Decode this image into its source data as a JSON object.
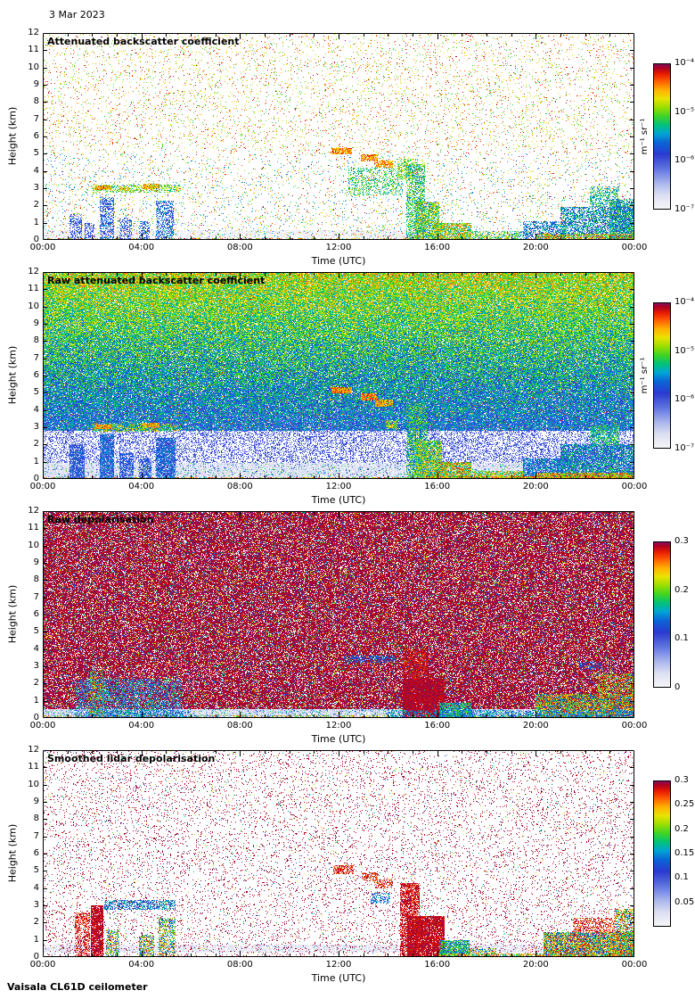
{
  "figure": {
    "date_label": "3 Mar 2023",
    "footer_label": "Vaisala CL61D ceilometer",
    "background": "#ffffff",
    "colormap": [
      [
        0.0,
        "#f8f8f8"
      ],
      [
        0.1,
        "#dcdff2"
      ],
      [
        0.18,
        "#aab6ec"
      ],
      [
        0.28,
        "#5f74e0"
      ],
      [
        0.38,
        "#2a3ad0"
      ],
      [
        0.46,
        "#0b64d8"
      ],
      [
        0.52,
        "#00a6d2"
      ],
      [
        0.58,
        "#00c27a"
      ],
      [
        0.64,
        "#3fd426"
      ],
      [
        0.7,
        "#9ade00"
      ],
      [
        0.76,
        "#e8e400"
      ],
      [
        0.82,
        "#ffb000"
      ],
      [
        0.88,
        "#ff5a00"
      ],
      [
        0.93,
        "#e81800"
      ],
      [
        0.97,
        "#ad0023"
      ],
      [
        1.0,
        "#7c1166"
      ]
    ]
  },
  "chart_data": [
    {
      "type": "heatmap",
      "title": "Attenuated backscatter coefficient",
      "xlabel": "Time (UTC)",
      "ylabel": "Height (km)",
      "x_range_hours": [
        0,
        24
      ],
      "ylim_km": [
        0,
        12
      ],
      "x_tick_labels": [
        "00:00",
        "04:00",
        "08:00",
        "12:00",
        "16:00",
        "20:00",
        "00:00"
      ],
      "x_tick_hours": [
        0,
        4,
        8,
        12,
        16,
        20,
        24
      ],
      "y_tick_values": [
        0,
        1,
        2,
        3,
        4,
        5,
        6,
        7,
        8,
        9,
        10,
        11,
        12
      ],
      "colorbar": {
        "scale": "log",
        "range": [
          "1e-7",
          "1e-4"
        ],
        "unit": "m⁻¹ sr⁻¹",
        "tick_labels": [
          "10⁻⁴",
          "10⁻⁵",
          "10⁻⁶",
          "10⁻⁷"
        ],
        "tick_fracs_from_top": [
          0,
          0.3333,
          0.6667,
          1
        ]
      },
      "render": {
        "mode": "sparse-warm",
        "seed": 11,
        "features": [
          [
            1.1,
            1.6,
            0,
            1.5,
            0.45,
            0.28,
            0.48
          ],
          [
            1.7,
            2.1,
            0,
            1.0,
            0.4,
            0.28,
            0.45
          ],
          [
            2.3,
            2.9,
            0,
            2.5,
            0.5,
            0.28,
            0.52
          ],
          [
            3.1,
            3.6,
            0,
            1.3,
            0.42,
            0.28,
            0.5
          ],
          [
            3.9,
            4.35,
            0,
            1.1,
            0.42,
            0.3,
            0.5
          ],
          [
            4.6,
            5.3,
            0,
            2.3,
            0.5,
            0.3,
            0.55
          ],
          [
            2.0,
            5.6,
            2.75,
            3.2,
            0.45,
            0.5,
            0.8
          ],
          [
            2.15,
            2.8,
            2.9,
            3.15,
            0.85,
            0.72,
            0.95
          ],
          [
            3.15,
            3.5,
            2.85,
            3.1,
            0.7,
            0.7,
            0.9
          ],
          [
            4.05,
            4.75,
            2.95,
            3.25,
            0.75,
            0.7,
            0.92
          ],
          [
            11.7,
            12.55,
            4.95,
            5.35,
            0.85,
            0.75,
            0.95
          ],
          [
            12.9,
            13.6,
            4.55,
            4.95,
            0.8,
            0.75,
            0.95
          ],
          [
            13.5,
            14.2,
            4.2,
            4.6,
            0.75,
            0.72,
            0.92
          ],
          [
            12.4,
            14.6,
            2.6,
            4.2,
            0.3,
            0.48,
            0.72
          ],
          [
            14.4,
            15.2,
            3.5,
            4.7,
            0.45,
            0.55,
            0.8
          ],
          [
            14.75,
            15.5,
            0,
            4.4,
            0.55,
            0.45,
            0.75
          ],
          [
            15.1,
            16.1,
            0,
            2.2,
            0.75,
            0.45,
            0.85
          ],
          [
            15.9,
            17.4,
            0,
            1.0,
            0.75,
            0.5,
            0.9
          ],
          [
            17.4,
            19.5,
            0,
            0.5,
            0.45,
            0.45,
            0.8
          ],
          [
            19.5,
            21.2,
            0,
            1.1,
            0.5,
            0.33,
            0.6
          ],
          [
            21.0,
            24.0,
            0,
            1.9,
            0.6,
            0.33,
            0.65
          ],
          [
            22.2,
            23.4,
            1.9,
            3.1,
            0.45,
            0.45,
            0.7
          ],
          [
            23.0,
            24.0,
            0,
            2.4,
            0.65,
            0.35,
            0.7
          ],
          [
            20.0,
            24.0,
            0,
            0.35,
            0.6,
            0.55,
            0.95
          ]
        ]
      }
    },
    {
      "type": "heatmap",
      "title": "Raw attenuated backscatter coefficient",
      "xlabel": "Time (UTC)",
      "ylabel": "Height (km)",
      "x_range_hours": [
        0,
        24
      ],
      "ylim_km": [
        0,
        12
      ],
      "x_tick_labels": [
        "00:00",
        "04:00",
        "08:00",
        "12:00",
        "16:00",
        "20:00",
        "00:00"
      ],
      "x_tick_hours": [
        0,
        4,
        8,
        12,
        16,
        20,
        24
      ],
      "y_tick_values": [
        0,
        1,
        2,
        3,
        4,
        5,
        6,
        7,
        8,
        9,
        10,
        11,
        12
      ],
      "colorbar": {
        "scale": "log",
        "range": [
          "1e-7",
          "1e-4"
        ],
        "unit": "m⁻¹ sr⁻¹",
        "tick_labels": [
          "10⁻⁴",
          "10⁻⁵",
          "10⁻⁶",
          "10⁻⁷"
        ],
        "tick_fracs_from_top": [
          0,
          0.3333,
          0.6667,
          1
        ]
      },
      "render": {
        "mode": "dense-gradient",
        "seed": 22,
        "features": [
          [
            1.1,
            1.7,
            0,
            2.0,
            0.8,
            0.25,
            0.5
          ],
          [
            2.3,
            2.9,
            0,
            2.6,
            0.85,
            0.25,
            0.55
          ],
          [
            3.1,
            3.7,
            0,
            1.5,
            0.7,
            0.25,
            0.5
          ],
          [
            3.9,
            4.4,
            0,
            1.2,
            0.7,
            0.25,
            0.5
          ],
          [
            4.6,
            5.4,
            0,
            2.4,
            0.8,
            0.28,
            0.55
          ],
          [
            2.0,
            5.6,
            2.75,
            3.2,
            0.55,
            0.5,
            0.85
          ],
          [
            2.15,
            2.8,
            2.9,
            3.15,
            0.9,
            0.75,
            0.95
          ],
          [
            4.05,
            4.75,
            2.95,
            3.25,
            0.8,
            0.72,
            0.93
          ],
          [
            11.7,
            12.55,
            4.95,
            5.35,
            0.9,
            0.75,
            0.95
          ],
          [
            12.9,
            13.6,
            4.55,
            4.95,
            0.85,
            0.75,
            0.95
          ],
          [
            13.5,
            14.2,
            4.2,
            4.6,
            0.8,
            0.72,
            0.92
          ],
          [
            13.9,
            14.4,
            2.9,
            3.4,
            0.6,
            0.6,
            0.85
          ],
          [
            14.75,
            15.6,
            0,
            4.4,
            0.7,
            0.4,
            0.75
          ],
          [
            15.1,
            16.2,
            0,
            2.2,
            0.85,
            0.45,
            0.85
          ],
          [
            15.9,
            17.4,
            0,
            1.0,
            0.85,
            0.5,
            0.95
          ],
          [
            17.4,
            19.5,
            0,
            0.45,
            0.7,
            0.5,
            0.9
          ],
          [
            19.5,
            21.2,
            0,
            1.2,
            0.75,
            0.3,
            0.6
          ],
          [
            21.0,
            24.0,
            0,
            2.0,
            0.8,
            0.3,
            0.65
          ],
          [
            22.2,
            23.4,
            1.9,
            3.1,
            0.6,
            0.45,
            0.7
          ],
          [
            20.0,
            24.0,
            0,
            0.35,
            0.8,
            0.6,
            0.98
          ],
          [
            15.5,
            24.0,
            0,
            0.18,
            0.8,
            0.6,
            0.98
          ]
        ]
      }
    },
    {
      "type": "heatmap",
      "title": "Raw depolarisation",
      "xlabel": "Time (UTC)",
      "ylabel": "Height (km)",
      "x_range_hours": [
        0,
        24
      ],
      "ylim_km": [
        0,
        12
      ],
      "x_tick_labels": [
        "00:00",
        "04:00",
        "08:00",
        "12:00",
        "16:00",
        "20:00",
        "00:00"
      ],
      "x_tick_hours": [
        0,
        4,
        8,
        12,
        16,
        20,
        24
      ],
      "y_tick_values": [
        0,
        1,
        2,
        3,
        4,
        5,
        6,
        7,
        8,
        9,
        10,
        11,
        12
      ],
      "colorbar": {
        "scale": "linear",
        "range": [
          0,
          0.3
        ],
        "tick_labels": [
          "0.3",
          "0.2",
          "0.1",
          "0"
        ],
        "tick_fracs_from_top": [
          0,
          0.3333,
          0.6667,
          1
        ]
      },
      "render": {
        "mode": "dense-magenta",
        "seed": 33,
        "features": [
          [
            1.3,
            5.6,
            0,
            2.3,
            0.5,
            0.2,
            0.65
          ],
          [
            1.9,
            2.5,
            0,
            2.8,
            0.55,
            0.3,
            0.95
          ],
          [
            12.2,
            14.3,
            3.2,
            3.6,
            0.45,
            0.36,
            0.52
          ],
          [
            14.6,
            16.3,
            0,
            2.3,
            0.95,
            0.94,
            1.0
          ],
          [
            14.6,
            15.6,
            2.3,
            4.0,
            0.6,
            0.9,
            1.0
          ],
          [
            16.1,
            17.4,
            0,
            0.9,
            0.85,
            0.38,
            0.72
          ],
          [
            20.0,
            24.0,
            0,
            1.4,
            0.85,
            0.38,
            1.0
          ],
          [
            21.8,
            22.7,
            2.8,
            3.25,
            0.4,
            0.36,
            0.5
          ],
          [
            22.5,
            24.0,
            1.4,
            2.6,
            0.5,
            0.5,
            1.0
          ],
          [
            14.0,
            24.0,
            0,
            0.45,
            0.45,
            0.38,
            0.6
          ],
          [
            2.0,
            6.0,
            0,
            0.45,
            0.3,
            0.38,
            0.6
          ]
        ]
      }
    },
    {
      "type": "heatmap",
      "title": "Smoothed lidar depolarisation",
      "xlabel": "Time (UTC)",
      "ylabel": "Height (km)",
      "x_range_hours": [
        0,
        24
      ],
      "ylim_km": [
        0,
        12
      ],
      "x_tick_labels": [
        "00:00",
        "04:00",
        "08:00",
        "12:00",
        "16:00",
        "20:00",
        "00:00"
      ],
      "x_tick_hours": [
        0,
        4,
        8,
        12,
        16,
        20,
        24
      ],
      "y_tick_values": [
        0,
        1,
        2,
        3,
        4,
        5,
        6,
        7,
        8,
        9,
        10,
        11,
        12
      ],
      "colorbar": {
        "scale": "linear",
        "range": [
          0,
          0.3
        ],
        "tick_labels": [
          "0.3",
          "0.25",
          "0.2",
          "0.15",
          "0.1",
          "0.05"
        ],
        "tick_fracs_from_top": [
          0,
          0.1667,
          0.3333,
          0.5,
          0.6667,
          0.8333
        ]
      },
      "render": {
        "mode": "sparse-magenta",
        "seed": 44,
        "features": [
          [
            1.3,
            1.9,
            0,
            2.6,
            0.5,
            0.88,
            1.0
          ],
          [
            1.95,
            2.45,
            0,
            3.0,
            0.85,
            0.92,
            1.0
          ],
          [
            2.5,
            5.4,
            2.75,
            3.3,
            0.55,
            0.3,
            0.62
          ],
          [
            2.55,
            3.1,
            0,
            1.6,
            0.5,
            0.35,
            0.9
          ],
          [
            3.9,
            4.5,
            0,
            1.3,
            0.6,
            0.35,
            0.95
          ],
          [
            4.7,
            5.4,
            0,
            2.3,
            0.55,
            0.35,
            0.9
          ],
          [
            11.8,
            12.6,
            4.8,
            5.35,
            0.6,
            0.86,
            1.0
          ],
          [
            12.95,
            13.6,
            4.4,
            4.9,
            0.55,
            0.86,
            1.0
          ],
          [
            13.5,
            14.2,
            4.0,
            4.5,
            0.5,
            0.86,
            1.0
          ],
          [
            13.3,
            14.1,
            3.1,
            3.7,
            0.45,
            0.34,
            0.58
          ],
          [
            14.5,
            15.3,
            0,
            4.3,
            0.7,
            0.9,
            1.0
          ],
          [
            14.8,
            16.3,
            0,
            2.4,
            0.92,
            0.92,
            1.0
          ],
          [
            16.1,
            17.3,
            0,
            1.0,
            0.85,
            0.38,
            0.72
          ],
          [
            17.2,
            18.4,
            0,
            0.5,
            0.5,
            0.4,
            0.9
          ],
          [
            20.3,
            24.0,
            0,
            1.45,
            0.85,
            0.35,
            1.0
          ],
          [
            21.5,
            23.2,
            1.45,
            2.3,
            0.45,
            0.85,
            1.0
          ],
          [
            16.0,
            24.0,
            0,
            0.2,
            0.6,
            0.5,
            0.95
          ],
          [
            23.2,
            24.0,
            0,
            2.8,
            0.6,
            0.4,
            1.0
          ]
        ]
      }
    }
  ]
}
